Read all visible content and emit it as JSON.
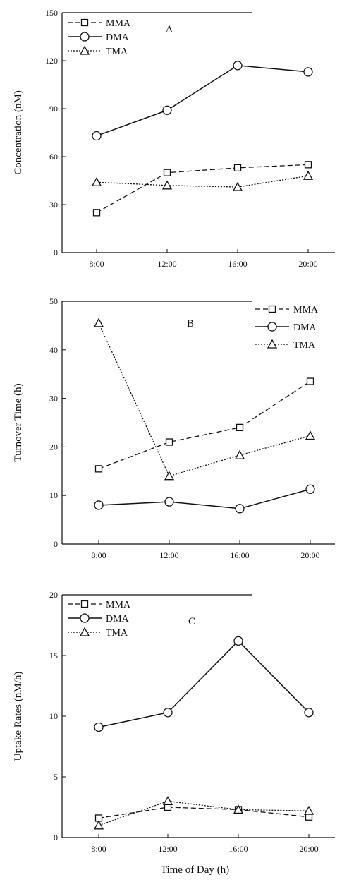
{
  "chart_data": [
    {
      "type": "line",
      "panel_label": "A",
      "categories": [
        "8:00",
        "12:00",
        "16:00",
        "20:00"
      ],
      "xlabel": "",
      "ylabel": "Concentration (nM)",
      "ylim": [
        0,
        150
      ],
      "yticks": [
        "0",
        "30",
        "60",
        "90",
        "120",
        "150"
      ],
      "legend_position": "top-left",
      "series": [
        {
          "name": "MMA",
          "style": "dashed",
          "marker": "square",
          "values": [
            25,
            50,
            53,
            55
          ]
        },
        {
          "name": "DMA",
          "style": "solid",
          "marker": "circle",
          "values": [
            73,
            89,
            117,
            113
          ]
        },
        {
          "name": "TMA",
          "style": "dotted",
          "marker": "triangle",
          "values": [
            44,
            42,
            41,
            48
          ]
        }
      ]
    },
    {
      "type": "line",
      "panel_label": "B",
      "categories": [
        "8:00",
        "12:00",
        "16:00",
        "20:00"
      ],
      "xlabel": "",
      "ylabel": "Turnover Time (h)",
      "ylim": [
        0,
        50
      ],
      "yticks": [
        "0",
        "10",
        "20",
        "30",
        "40",
        "50"
      ],
      "legend_position": "top-right",
      "series": [
        {
          "name": "MMA",
          "style": "dashed",
          "marker": "square",
          "values": [
            15.5,
            21,
            24,
            33.5
          ]
        },
        {
          "name": "DMA",
          "style": "solid",
          "marker": "circle",
          "values": [
            8,
            8.7,
            7.3,
            11.3
          ]
        },
        {
          "name": "TMA",
          "style": "dotted",
          "marker": "triangle",
          "values": [
            45.5,
            14,
            18.3,
            22.3
          ]
        }
      ]
    },
    {
      "type": "line",
      "panel_label": "C",
      "categories": [
        "8:00",
        "12:00",
        "16:00",
        "20:00"
      ],
      "xlabel": "Time of Day (h)",
      "ylabel": "Uptake Rates (nM/h)",
      "ylim": [
        0,
        20
      ],
      "yticks": [
        "0",
        "5",
        "10",
        "15",
        "20"
      ],
      "legend_position": "top-left",
      "series": [
        {
          "name": "MMA",
          "style": "dashed",
          "marker": "square",
          "values": [
            1.6,
            2.5,
            2.3,
            1.7
          ]
        },
        {
          "name": "DMA",
          "style": "solid",
          "marker": "circle",
          "values": [
            9.1,
            10.3,
            16.2,
            10.3
          ]
        },
        {
          "name": "TMA",
          "style": "dotted",
          "marker": "triangle",
          "values": [
            1.0,
            3.0,
            2.3,
            2.2
          ]
        }
      ]
    }
  ]
}
